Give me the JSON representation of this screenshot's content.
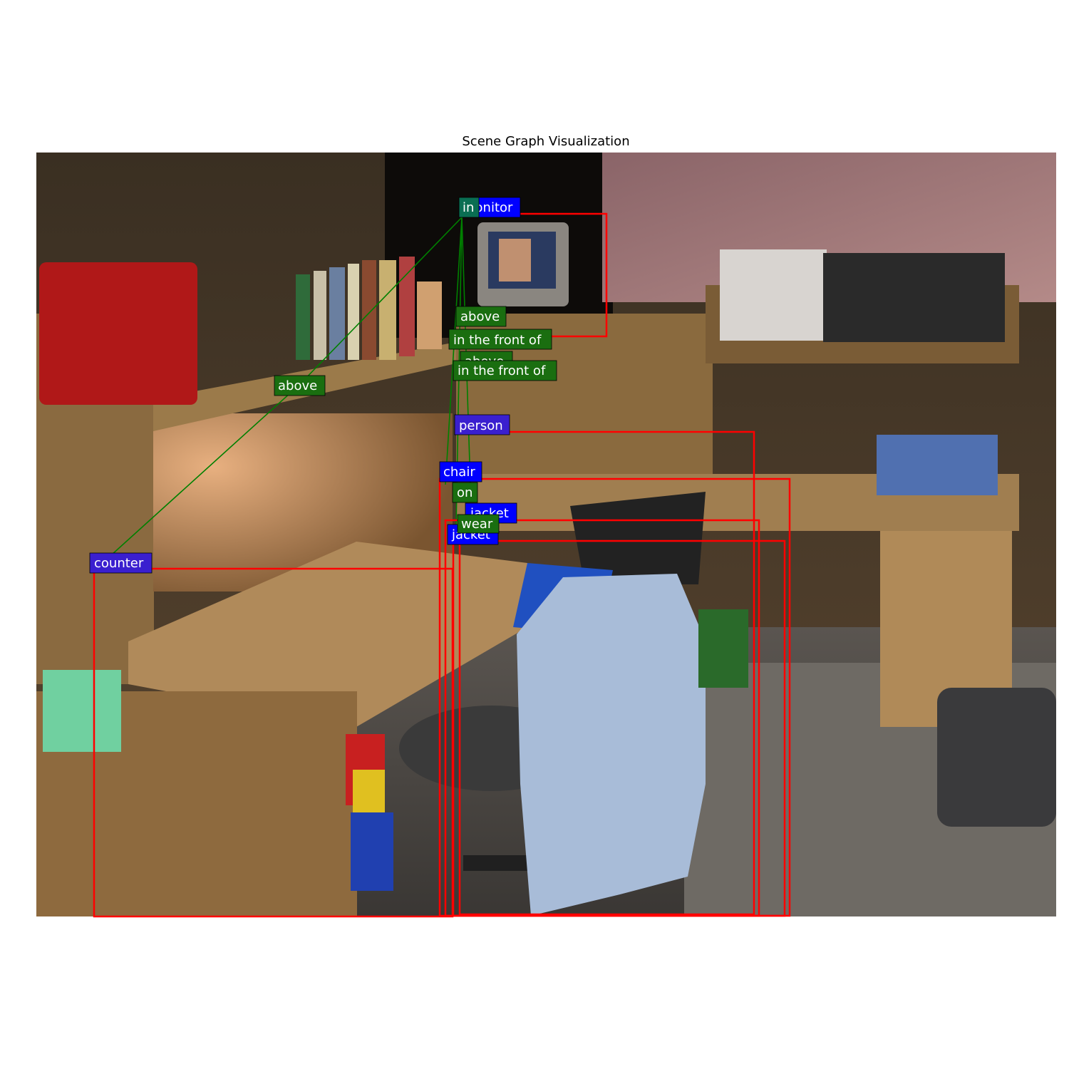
{
  "title": "Scene Graph Visualization",
  "colors": {
    "object_box": "#ff0000",
    "object_label_bg": "#0000ff",
    "relation_label_bg": "#0a6e0a",
    "relation_line": "#008000"
  },
  "scene": {
    "description_icon": "photo-room-desk-chair-jacket",
    "objects": [
      {
        "id": "monitor",
        "label": "monitor"
      },
      {
        "id": "person",
        "label": "person"
      },
      {
        "id": "chair",
        "label": "chair"
      },
      {
        "id": "jacket1",
        "label": "jacket"
      },
      {
        "id": "jacket2",
        "label": "jacket"
      },
      {
        "id": "counter",
        "label": "counter"
      }
    ],
    "relations": [
      {
        "id": "r1",
        "label": "in"
      },
      {
        "id": "r2",
        "label": "above"
      },
      {
        "id": "r3",
        "label": "in the front of"
      },
      {
        "id": "r4",
        "label": "above"
      },
      {
        "id": "r5",
        "label": "in the front of"
      },
      {
        "id": "r6",
        "label": "above"
      },
      {
        "id": "r7",
        "label": "on"
      },
      {
        "id": "r8",
        "label": "wear"
      }
    ]
  }
}
